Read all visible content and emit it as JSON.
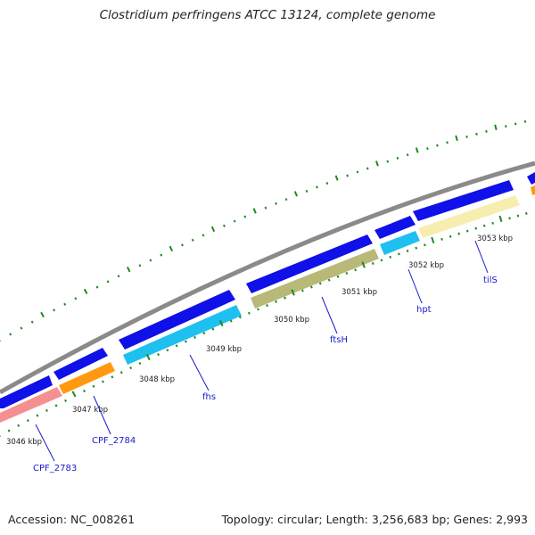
{
  "title": "Clostridium perfringens ATCC 13124, complete genome",
  "footer": {
    "accession_label": "Accession: NC_008261",
    "summary_label": "Topology: circular; Length: 3,256,683 bp; Genes: 2,993"
  },
  "colors": {
    "backbone": "#8a8a8a",
    "forward_cds": "#1010e8",
    "trna": "#1ec0f0",
    "rrna": "#b8b878",
    "other": "#f6eeb0",
    "pseudo": "#f59090",
    "misc": "#ff9a10",
    "tick": "#1e8a1e",
    "label": "#1a1acc"
  },
  "ruler": {
    "labels": [
      "3046 kbp",
      "3047 kbp",
      "3048 kbp",
      "3049 kbp",
      "3050 kbp",
      "3051 kbp",
      "3052 kbp",
      "3053 kbp"
    ]
  },
  "genes": [
    {
      "name": "CPF_2783",
      "color_key": "pseudo"
    },
    {
      "name": "CPF_2784",
      "color_key": "misc"
    },
    {
      "name": "fhs",
      "color_key": "trna"
    },
    {
      "name": "ftsH",
      "color_key": "rrna"
    },
    {
      "name": "hpt",
      "color_key": "trna"
    },
    {
      "name": "tilS",
      "color_key": "other"
    }
  ]
}
